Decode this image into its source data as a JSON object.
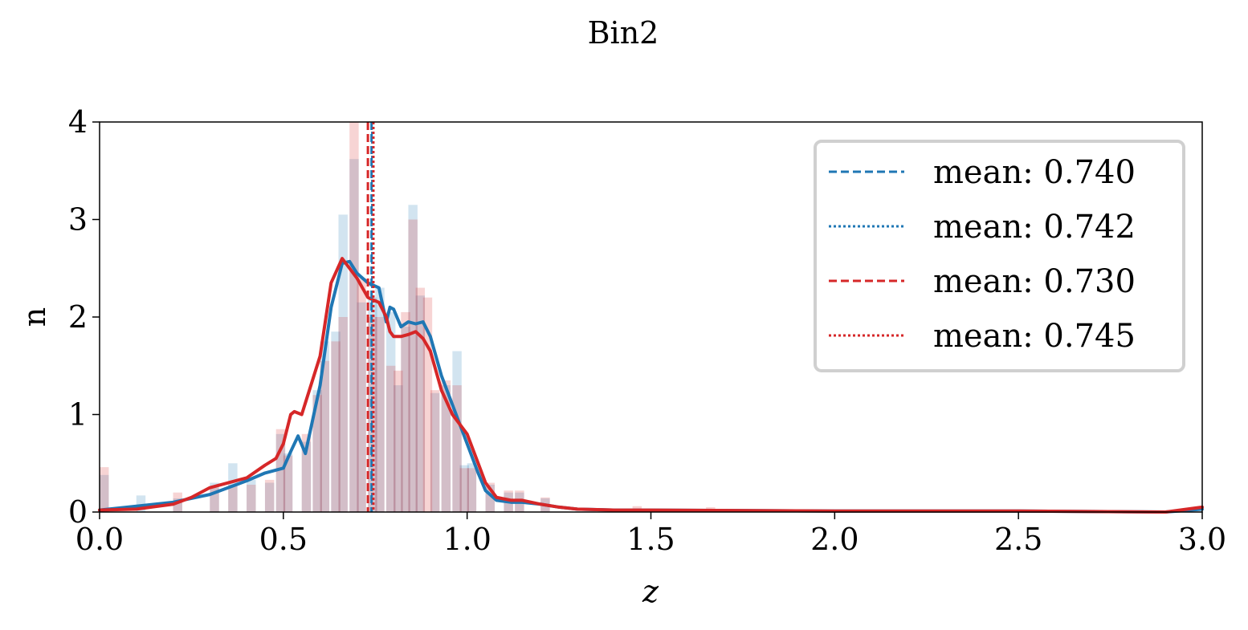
{
  "chart_data": {
    "type": "histogram",
    "title": "Bin2",
    "xlabel": "z",
    "ylabel": "n",
    "xlim": [
      0.0,
      3.0
    ],
    "ylim": [
      0,
      4
    ],
    "x_ticks": [
      "0.0",
      "0.5",
      "1.0",
      "1.5",
      "2.0",
      "2.5",
      "3.0"
    ],
    "y_ticks": [
      "0",
      "1",
      "2",
      "3",
      "4"
    ],
    "grid": false,
    "legend_placement": "top-right",
    "colors": {
      "blue": "#1f77b4",
      "red": "#d62728"
    },
    "histograms": [
      {
        "color": "#1f77b4",
        "opacity": 0.2,
        "bins": [
          [
            0.0,
            0.38
          ],
          [
            0.1,
            0.17
          ],
          [
            0.2,
            0.14
          ],
          [
            0.3,
            0.3
          ],
          [
            0.35,
            0.5
          ],
          [
            0.4,
            0.33
          ],
          [
            0.45,
            0.3
          ],
          [
            0.48,
            0.8
          ],
          [
            0.5,
            0.6
          ],
          [
            0.55,
            0.72
          ],
          [
            0.58,
            1.25
          ],
          [
            0.6,
            1.75
          ],
          [
            0.63,
            1.85
          ],
          [
            0.65,
            3.05
          ],
          [
            0.68,
            3.62
          ],
          [
            0.7,
            2.15
          ],
          [
            0.73,
            2.2
          ],
          [
            0.75,
            2.3
          ],
          [
            0.78,
            2.05
          ],
          [
            0.8,
            1.3
          ],
          [
            0.82,
            1.9
          ],
          [
            0.84,
            3.15
          ],
          [
            0.86,
            2.22
          ],
          [
            0.9,
            1.22
          ],
          [
            0.93,
            1.3
          ],
          [
            0.96,
            1.65
          ],
          [
            0.98,
            0.48
          ],
          [
            1.0,
            0.5
          ],
          [
            1.05,
            0.28
          ],
          [
            1.1,
            0.2
          ],
          [
            1.13,
            0.2
          ],
          [
            1.2,
            0.14
          ]
        ]
      },
      {
        "color": "#d62728",
        "opacity": 0.2,
        "bins": [
          [
            0.0,
            0.46
          ],
          [
            0.2,
            0.2
          ],
          [
            0.3,
            0.25
          ],
          [
            0.35,
            0.28
          ],
          [
            0.4,
            0.28
          ],
          [
            0.45,
            0.33
          ],
          [
            0.48,
            0.85
          ],
          [
            0.5,
            0.58
          ],
          [
            0.55,
            0.8
          ],
          [
            0.58,
            1.2
          ],
          [
            0.6,
            1.55
          ],
          [
            0.63,
            1.75
          ],
          [
            0.65,
            2.0
          ],
          [
            0.68,
            4.0
          ],
          [
            0.7,
            2.4
          ],
          [
            0.73,
            2.0
          ],
          [
            0.75,
            2.0
          ],
          [
            0.78,
            1.5
          ],
          [
            0.8,
            1.45
          ],
          [
            0.82,
            2.05
          ],
          [
            0.84,
            3.0
          ],
          [
            0.86,
            2.3
          ],
          [
            0.88,
            2.2
          ],
          [
            0.9,
            1.25
          ],
          [
            0.93,
            1.35
          ],
          [
            0.96,
            1.3
          ],
          [
            0.98,
            0.45
          ],
          [
            1.0,
            0.45
          ],
          [
            1.05,
            0.3
          ],
          [
            1.1,
            0.22
          ],
          [
            1.13,
            0.22
          ],
          [
            1.2,
            0.15
          ],
          [
            1.45,
            0.06
          ],
          [
            1.65,
            0.05
          ]
        ]
      }
    ],
    "series": [
      {
        "color": "#1f77b4",
        "x": [
          0.0,
          0.1,
          0.2,
          0.3,
          0.4,
          0.45,
          0.5,
          0.52,
          0.54,
          0.56,
          0.6,
          0.63,
          0.66,
          0.68,
          0.7,
          0.73,
          0.76,
          0.78,
          0.79,
          0.8,
          0.82,
          0.84,
          0.86,
          0.88,
          0.9,
          0.93,
          0.96,
          1.0,
          1.03,
          1.05,
          1.08,
          1.12,
          1.15,
          1.2,
          1.25,
          1.3,
          1.4,
          1.5,
          2.0,
          2.5,
          2.9,
          3.0
        ],
        "y": [
          0.02,
          0.06,
          0.1,
          0.18,
          0.32,
          0.4,
          0.45,
          0.62,
          0.78,
          0.6,
          1.3,
          2.1,
          2.55,
          2.57,
          2.45,
          2.35,
          2.3,
          1.95,
          2.1,
          2.08,
          1.9,
          1.95,
          1.93,
          1.95,
          1.8,
          1.4,
          1.1,
          0.7,
          0.4,
          0.22,
          0.12,
          0.1,
          0.1,
          0.08,
          0.05,
          0.03,
          0.02,
          0.02,
          0.01,
          0.01,
          0.0,
          0.03
        ]
      },
      {
        "color": "#d62728",
        "x": [
          0.0,
          0.1,
          0.2,
          0.25,
          0.3,
          0.4,
          0.45,
          0.48,
          0.5,
          0.52,
          0.53,
          0.55,
          0.6,
          0.63,
          0.66,
          0.7,
          0.73,
          0.76,
          0.78,
          0.79,
          0.8,
          0.82,
          0.84,
          0.86,
          0.88,
          0.9,
          0.93,
          0.96,
          1.0,
          1.03,
          1.05,
          1.08,
          1.12,
          1.15,
          1.2,
          1.25,
          1.3,
          1.4,
          1.5,
          2.0,
          2.5,
          2.9,
          3.0
        ],
        "y": [
          0.02,
          0.03,
          0.08,
          0.15,
          0.25,
          0.35,
          0.48,
          0.55,
          0.7,
          1.0,
          1.03,
          1.0,
          1.6,
          2.35,
          2.6,
          2.4,
          2.2,
          2.15,
          2.0,
          1.85,
          1.8,
          1.8,
          1.82,
          1.85,
          1.78,
          1.65,
          1.25,
          1.0,
          0.8,
          0.5,
          0.3,
          0.15,
          0.12,
          0.12,
          0.08,
          0.05,
          0.03,
          0.02,
          0.02,
          0.01,
          0.01,
          0.0,
          0.05
        ]
      }
    ],
    "mean_lines": [
      {
        "label": "mean: 0.740",
        "value": 0.74,
        "color": "#1f77b4",
        "style": "dashed"
      },
      {
        "label": "mean: 0.742",
        "value": 0.742,
        "color": "#1f77b4",
        "style": "dotted"
      },
      {
        "label": "mean: 0.730",
        "value": 0.73,
        "color": "#d62728",
        "style": "dashed"
      },
      {
        "label": "mean: 0.745",
        "value": 0.745,
        "color": "#d62728",
        "style": "dotted"
      }
    ]
  }
}
